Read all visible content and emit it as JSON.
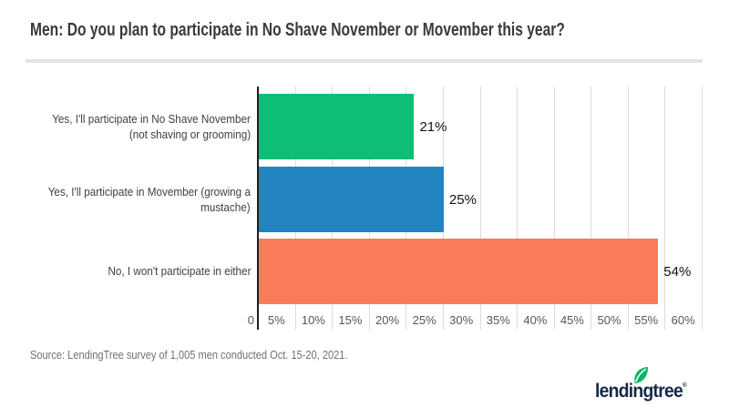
{
  "title": "Men: Do you plan to participate in No Shave November or Movember this year?",
  "source": "Source: LendingTree survey of 1,005 men conducted Oct. 15-20, 2021.",
  "logo": {
    "wordmark": "lendingtree",
    "registered_mark": "®",
    "leaf_icon": "leaf-icon",
    "wordmark_color": "#15284b",
    "leaf_color": "#00b864"
  },
  "chart_data": {
    "type": "bar",
    "orientation": "horizontal",
    "title": "Men: Do you plan to participate in No Shave November or Movember this year?",
    "categories": [
      "Yes, I'll participate in No Shave November (not shaving or grooming)",
      "Yes, I'll participate in Movember (growing a mustache)",
      "No, I won't participate in either"
    ],
    "category_lines": [
      [
        "Yes, I'll participate in No Shave November",
        "(not shaving or grooming)"
      ],
      [
        "Yes, I'll participate in Movember (growing a",
        "mustache)"
      ],
      [
        "No, I won't participate in either"
      ]
    ],
    "values": [
      21,
      25,
      54
    ],
    "value_labels": [
      "21%",
      "25%",
      "54%"
    ],
    "bar_colors": [
      "#0fbe76",
      "#2285c2",
      "#f87c57"
    ],
    "x_axis": {
      "label": "",
      "tick_values": [
        0,
        5,
        10,
        15,
        20,
        25,
        30,
        35,
        40,
        45,
        50,
        55,
        60
      ],
      "ticks": [
        "0",
        "5%",
        "10%",
        "15%",
        "20%",
        "25%",
        "30%",
        "35%",
        "40%",
        "45%",
        "50%",
        "55%",
        "60%"
      ],
      "min": 0,
      "max": 60
    },
    "grid": true,
    "gridline_color": "#dcdcdc",
    "axis_color": "#1f1f1f",
    "legend": "none"
  }
}
